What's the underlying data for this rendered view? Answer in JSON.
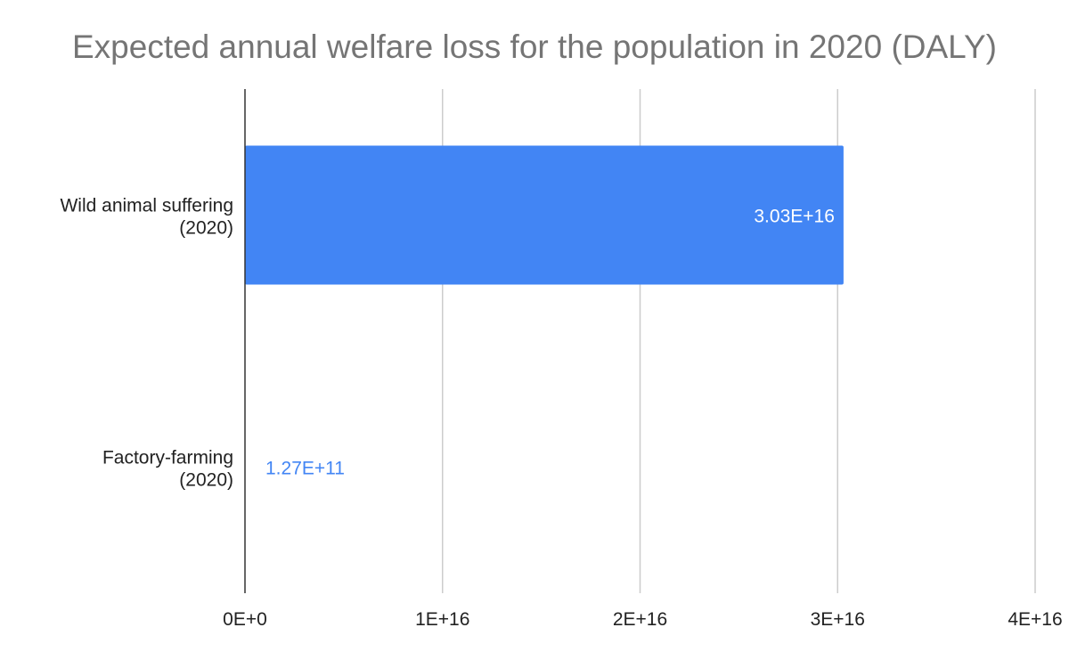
{
  "chart_data": {
    "type": "bar",
    "orientation": "horizontal",
    "title": "Expected annual welfare loss for the population in 2020 (DALY)",
    "xlabel": "",
    "ylabel": "",
    "categories": [
      [
        "Wild animal suffering",
        "(2020)"
      ],
      [
        "Factory-farming",
        "(2020)"
      ]
    ],
    "values": [
      3.03e+16,
      127000000000.0
    ],
    "data_labels": [
      "3.03E+16",
      "1.27E+11"
    ],
    "xlim": [
      0,
      4e+16
    ],
    "xticks": [
      0,
      1e+16,
      2e+16,
      3e+16,
      4e+16
    ],
    "xtick_labels": [
      "0E+0",
      "1E+16",
      "2E+16",
      "3E+16",
      "4E+16"
    ],
    "grid": true,
    "legend": "none",
    "colors": {
      "bar": "#4285f4",
      "title": "#757575",
      "grid": "#cccccc",
      "axis": "#333333",
      "label_inside": "#ffffff",
      "label_outside": "#4285f4",
      "tick_text": "#222222"
    }
  }
}
